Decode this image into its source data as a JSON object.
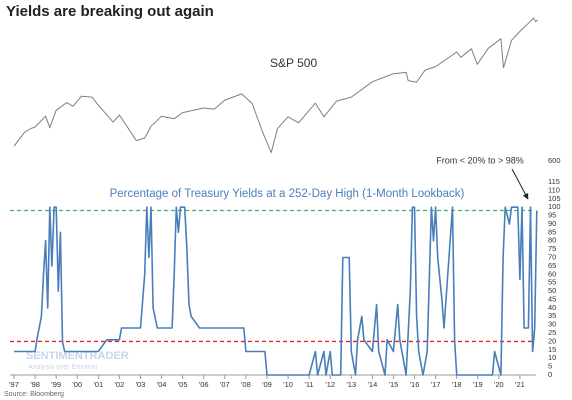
{
  "title": "Yields are breaking out again",
  "source": "Source: Bloomberg",
  "watermark": {
    "brand": "SENTIMENTRADER",
    "tagline": "Analysis over Emotion"
  },
  "chart_data": [
    {
      "type": "line",
      "label": "S&P 500",
      "log_scale": true,
      "color": "#7f7f7f",
      "xlim": [
        1997,
        2022
      ],
      "ylim": [
        600,
        5000
      ],
      "yticks": [
        600
      ],
      "x": [
        1997.0,
        1997.5,
        1997.8,
        1998.0,
        1998.5,
        1998.7,
        1999.0,
        1999.5,
        1999.8,
        2000.2,
        2000.7,
        2001.0,
        2001.7,
        2002.0,
        2002.5,
        2002.8,
        2003.2,
        2003.5,
        2004.0,
        2004.6,
        2005.0,
        2006.0,
        2006.5,
        2007.0,
        2007.8,
        2008.3,
        2008.8,
        2009.2,
        2009.5,
        2010.0,
        2010.5,
        2011.3,
        2011.7,
        2012.3,
        2013.0,
        2014.0,
        2015.0,
        2015.6,
        2015.7,
        2016.1,
        2016.5,
        2017.0,
        2018.0,
        2018.2,
        2018.7,
        2018.98,
        2019.5,
        2020.1,
        2020.22,
        2020.6,
        2021.0,
        2021.4,
        2021.65,
        2021.75,
        2021.85
      ],
      "values": [
        740,
        900,
        950,
        970,
        1130,
        960,
        1230,
        1370,
        1300,
        1500,
        1480,
        1320,
        1040,
        1150,
        920,
        800,
        830,
        980,
        1130,
        1090,
        1190,
        1270,
        1250,
        1420,
        1550,
        1350,
        900,
        676,
        950,
        1120,
        1030,
        1360,
        1120,
        1400,
        1480,
        1840,
        2060,
        2100,
        1870,
        1830,
        2170,
        2280,
        2800,
        2600,
        2930,
        2350,
        2950,
        3380,
        2240,
        3300,
        3750,
        4200,
        4530,
        4300,
        4400
      ]
    },
    {
      "type": "line",
      "title": "Percentage of Treasury Yields at a 252-Day High (1-Month Lookback)",
      "color": "#4a7ebb",
      "annotation": "From < 20% to > 98%",
      "xlim": [
        1997,
        2022
      ],
      "ylim": [
        0,
        115
      ],
      "yticks": [
        0,
        5,
        10,
        15,
        20,
        25,
        30,
        35,
        40,
        45,
        50,
        55,
        60,
        65,
        70,
        75,
        80,
        85,
        90,
        95,
        100,
        105,
        110,
        115
      ],
      "xticks": [
        {
          "value": 1997,
          "label": "'97"
        },
        {
          "value": 1998,
          "label": "'98"
        },
        {
          "value": 1999,
          "label": "'99"
        },
        {
          "value": 2000,
          "label": "'00"
        },
        {
          "value": 2001,
          "label": "'01"
        },
        {
          "value": 2002,
          "label": "'02"
        },
        {
          "value": 2003,
          "label": "'03"
        },
        {
          "value": 2004,
          "label": "'04"
        },
        {
          "value": 2005,
          "label": "'05"
        },
        {
          "value": 2006,
          "label": "'06"
        },
        {
          "value": 2007,
          "label": "'07"
        },
        {
          "value": 2008,
          "label": "'08"
        },
        {
          "value": 2009,
          "label": "'09"
        },
        {
          "value": 2010,
          "label": "'10"
        },
        {
          "value": 2011,
          "label": "'11"
        },
        {
          "value": 2012,
          "label": "'12"
        },
        {
          "value": 2013,
          "label": "'13"
        },
        {
          "value": 2014,
          "label": "'14"
        },
        {
          "value": 2015,
          "label": "'15"
        },
        {
          "value": 2016,
          "label": "'16"
        },
        {
          "value": 2017,
          "label": "'17"
        },
        {
          "value": 2018,
          "label": "'18"
        },
        {
          "value": 2019,
          "label": "'19"
        },
        {
          "value": 2020,
          "label": "'20"
        },
        {
          "value": 2021,
          "label": "'21"
        }
      ],
      "hlines": [
        {
          "value": 98,
          "color": "#3cb371"
        },
        {
          "value": 20,
          "color": "#d62728"
        }
      ],
      "x": [
        1997.0,
        1998.0,
        1998.1,
        1998.3,
        1998.4,
        1998.5,
        1998.6,
        1998.7,
        1998.8,
        1998.9,
        1999.0,
        1999.1,
        1999.2,
        1999.3,
        1999.4,
        2001.0,
        2001.4,
        2002.0,
        2002.1,
        2003.0,
        2003.2,
        2003.3,
        2003.4,
        2003.5,
        2003.6,
        2003.8,
        2004.5,
        2004.6,
        2004.7,
        2004.8,
        2004.9,
        2005.1,
        2005.2,
        2005.3,
        2005.4,
        2005.8,
        2007.9,
        2008.0,
        2008.9,
        2009.0,
        2011.0,
        2011.3,
        2011.4,
        2011.7,
        2011.8,
        2012.0,
        2012.1,
        2012.5,
        2012.6,
        2012.9,
        2013.0,
        2013.2,
        2013.3,
        2013.5,
        2013.6,
        2014.0,
        2014.2,
        2014.3,
        2014.6,
        2014.7,
        2015.0,
        2015.2,
        2015.3,
        2015.6,
        2015.8,
        2015.9,
        2016.0,
        2016.1,
        2016.2,
        2016.4,
        2016.6,
        2016.8,
        2016.9,
        2017.0,
        2017.1,
        2017.3,
        2017.4,
        2017.8,
        2017.9,
        2018.0,
        2019.7,
        2019.8,
        2020.1,
        2020.2,
        2020.3,
        2020.5,
        2020.6,
        2020.9,
        2021.0,
        2021.1,
        2021.2,
        2021.4,
        2021.5,
        2021.6,
        2021.7,
        2021.8
      ],
      "values": [
        14,
        14,
        22,
        35,
        60,
        80,
        40,
        100,
        65,
        100,
        100,
        50,
        85,
        20,
        14,
        14,
        21,
        21,
        28,
        28,
        60,
        100,
        70,
        100,
        40,
        28,
        28,
        60,
        100,
        85,
        100,
        100,
        75,
        42,
        35,
        28,
        28,
        14,
        14,
        0,
        0,
        14,
        0,
        14,
        0,
        14,
        0,
        0,
        70,
        70,
        14,
        0,
        21,
        35,
        21,
        14,
        42,
        14,
        0,
        21,
        14,
        42,
        21,
        0,
        50,
        100,
        100,
        35,
        14,
        0,
        14,
        100,
        80,
        100,
        70,
        45,
        28,
        100,
        21,
        0,
        0,
        14,
        0,
        70,
        100,
        90,
        100,
        100,
        57,
        100,
        28,
        28,
        100,
        14,
        28,
        98
      ]
    }
  ]
}
